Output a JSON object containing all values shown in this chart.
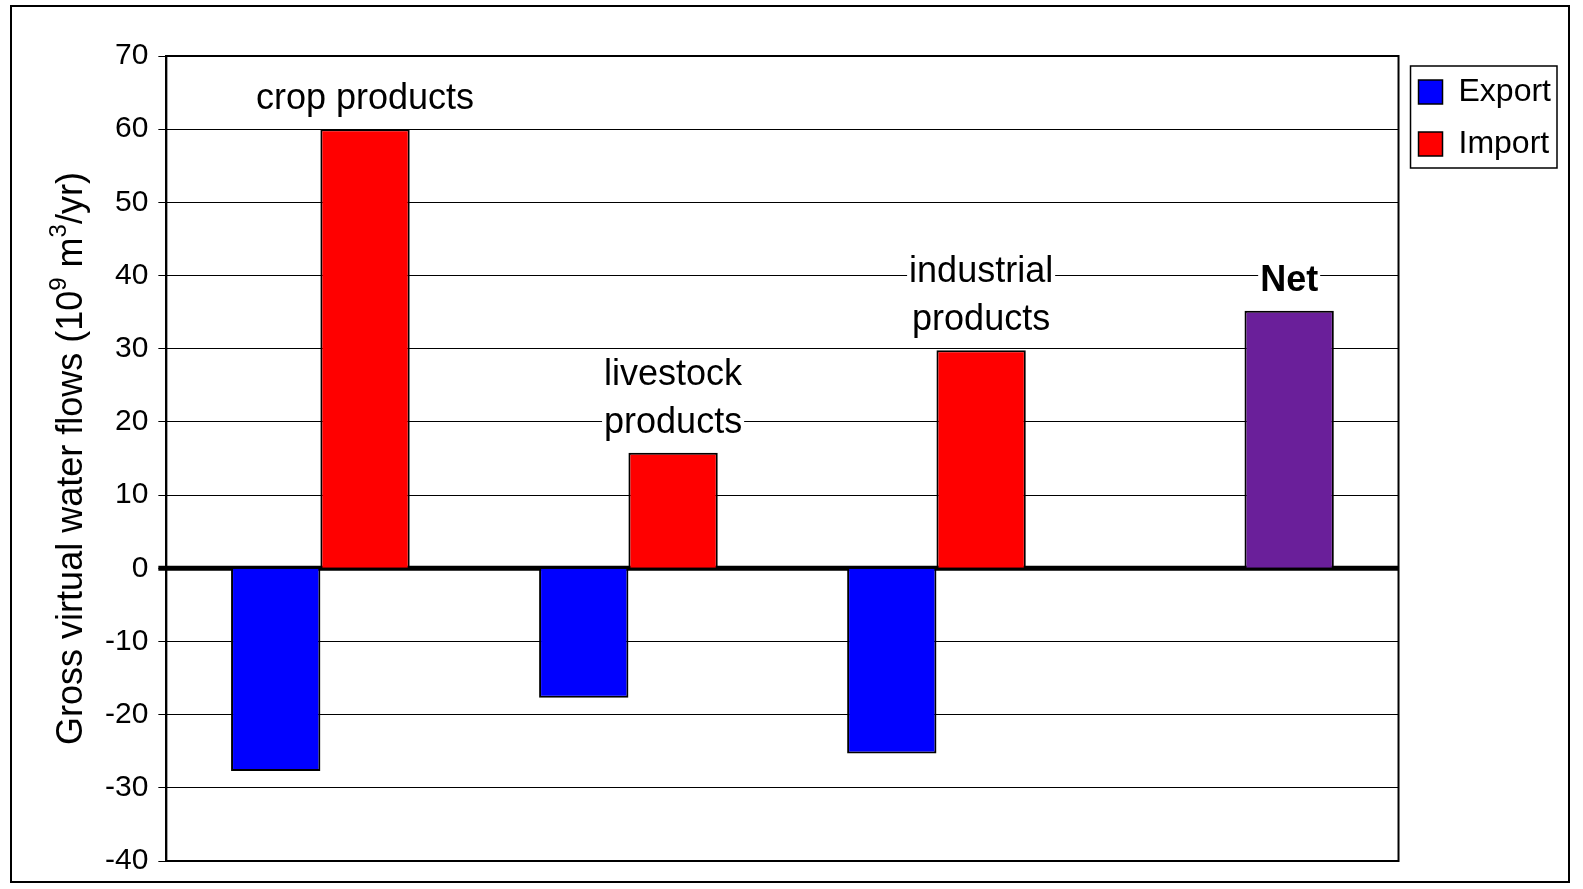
{
  "chart_data": {
    "type": "bar",
    "ylabel": "Gross virtual water flows (10$^{9}$ m$^{3}$/yr)",
    "categories": [
      "crop products",
      "livestock products",
      "industrial products",
      "Net"
    ],
    "series": [
      {
        "name": "Export",
        "color": "#0000ff",
        "values": [
          -27.7,
          -17.7,
          -25.3,
          null
        ]
      },
      {
        "name": "Import",
        "color": "#ff0000",
        "colors": [
          "#ff0000",
          "#ff0000",
          "#ff0000",
          "#6a1f9a"
        ],
        "values": [
          60,
          15.8,
          29.8,
          35.2
        ]
      }
    ],
    "ylim": [
      -40,
      70
    ],
    "yticks": [
      -40,
      -30,
      -20,
      -10,
      0,
      10,
      20,
      30,
      40,
      50,
      60,
      70
    ],
    "ref_lines": [
      {
        "axis": "y",
        "value": 0,
        "color": "#000000"
      }
    ],
    "grid": "y",
    "legend": "top right",
    "tick_labels": "y"
  }
}
